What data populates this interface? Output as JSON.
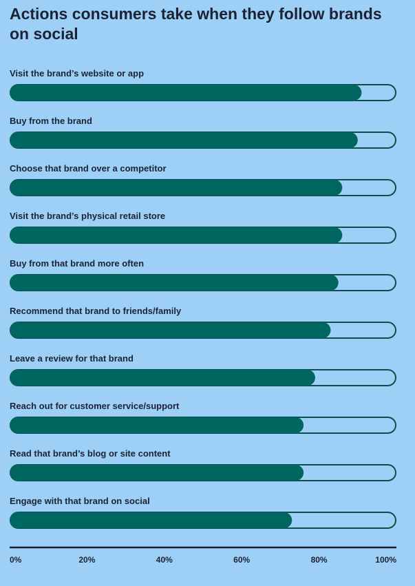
{
  "chart_data": {
    "type": "bar",
    "orientation": "horizontal",
    "title": "Actions consumers take when they follow brands on social",
    "categories": [
      "Visit the brand’s website or app",
      "Buy from the brand",
      "Choose that brand over a competitor",
      "Visit the brand’s physical retail store",
      "Buy from that brand more often",
      "Recommend that brand to friends/family",
      "Leave a review for that brand",
      "Reach out for customer service/support",
      "Read that brand’s blog or site content",
      "Engage with that brand on social"
    ],
    "values": [
      91,
      90,
      86,
      86,
      85,
      83,
      79,
      76,
      76,
      73
    ],
    "xlim": [
      0,
      100
    ],
    "ticks": [
      "0%",
      "20%",
      "40%",
      "60%",
      "80%",
      "100%"
    ],
    "tick_values": [
      0,
      20,
      40,
      60,
      80,
      100
    ],
    "grid": false,
    "colors": {
      "background": "#9ed0f7",
      "fill": "#006760",
      "track_border": "#0a4f4a",
      "text": "#1a2233"
    }
  }
}
